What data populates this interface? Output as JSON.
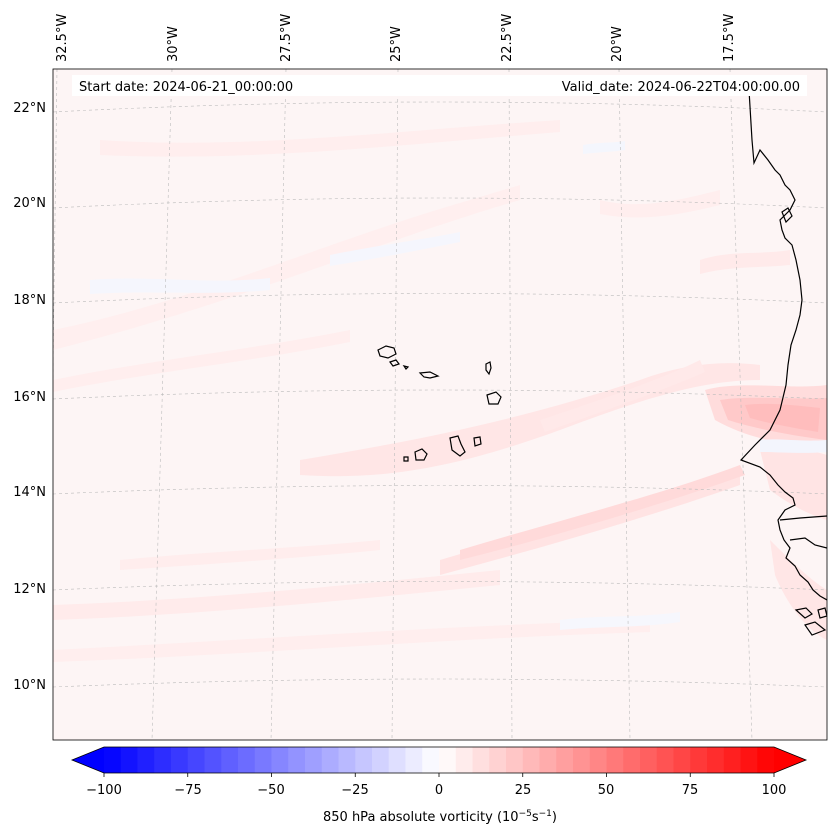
{
  "map": {
    "header": {
      "start_date": "Start date: 2024-06-21_00:00:00",
      "valid_date": "Valid_date: 2024-06-22T04:00:00.00"
    },
    "longitude_labels": [
      "32.5°W",
      "30°W",
      "27.5°W",
      "25°W",
      "22.5°W",
      "20°W",
      "17.5°W"
    ],
    "latitude_labels": [
      "22°N",
      "20°N",
      "18°N",
      "16°N",
      "14°N",
      "12°N",
      "10°N"
    ],
    "colors": {
      "background_field": "#fdf5f5",
      "light_positive": "#ffe9e9",
      "mid_positive": "#ffd7d7",
      "strong_positive": "#ffbcbc",
      "light_negative": "#f4f6ff",
      "coastline": "#000000",
      "gridline": "#bbbbbb"
    }
  },
  "colorbar": {
    "tick_labels": [
      "−100",
      "−75",
      "−50",
      "−25",
      "0",
      "25",
      "50",
      "75",
      "100"
    ],
    "tick_values": [
      -100,
      -75,
      -50,
      -25,
      0,
      25,
      50,
      75,
      100
    ],
    "range": [
      -100,
      100
    ],
    "step": 5,
    "label_prefix": "850 hPa absolute vorticity (10",
    "label_exp1": "−5",
    "label_mid": "s",
    "label_exp2": "−1",
    "label_suffix": ")"
  }
}
